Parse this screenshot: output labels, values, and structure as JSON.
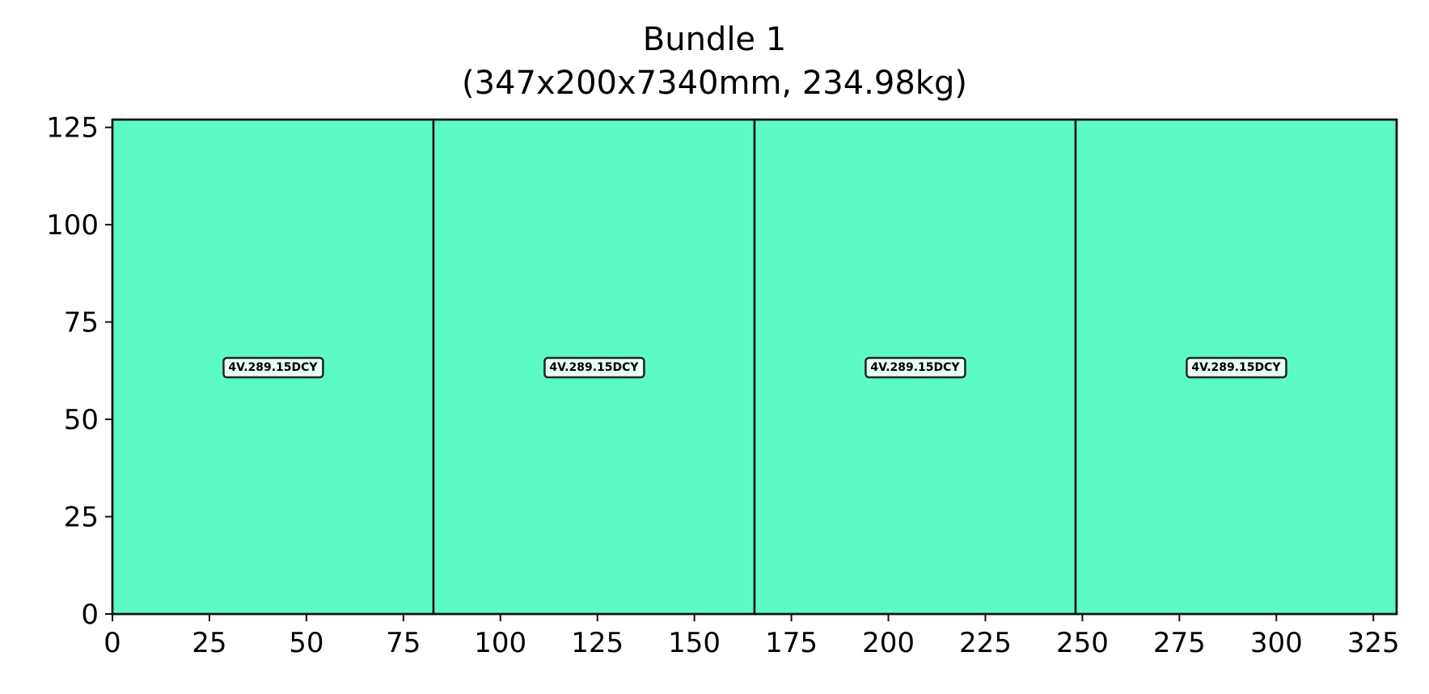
{
  "chart_data": {
    "type": "bar",
    "title": "Bundle 1",
    "subtitle": "(347x200x7340mm, 234.98kg)",
    "xlabel": "",
    "ylabel": "",
    "xlim": [
      0,
      331
    ],
    "ylim": [
      0,
      127
    ],
    "xticks": [
      0,
      25,
      50,
      75,
      100,
      125,
      150,
      175,
      200,
      225,
      250,
      275,
      300,
      325
    ],
    "yticks": [
      0,
      25,
      50,
      75,
      100,
      125
    ],
    "grid": false,
    "fill_color": "#5cfac6",
    "edge_color": "#111111",
    "items": [
      {
        "label": "4V.289.15DCY",
        "x0": 0,
        "x1": 82.75,
        "y0": 0,
        "y1": 127
      },
      {
        "label": "4V.289.15DCY",
        "x0": 82.75,
        "x1": 165.5,
        "y0": 0,
        "y1": 127
      },
      {
        "label": "4V.289.15DCY",
        "x0": 165.5,
        "x1": 248.25,
        "y0": 0,
        "y1": 127
      },
      {
        "label": "4V.289.15DCY",
        "x0": 248.25,
        "x1": 331,
        "y0": 0,
        "y1": 127
      }
    ]
  }
}
